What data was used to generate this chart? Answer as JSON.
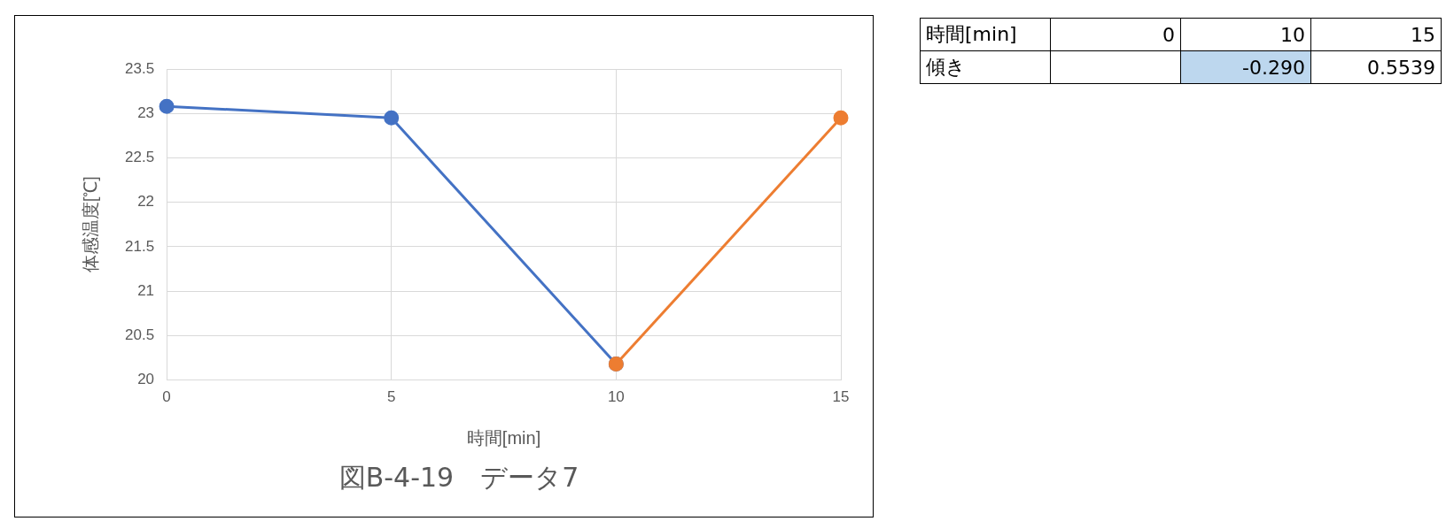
{
  "chart_data": [
    {
      "type": "line",
      "title": "図B-4-19　データ7",
      "xlabel": "時間[min]",
      "ylabel": "体感温度[℃]",
      "series": [
        {
          "color": "#4472c4",
          "x": [
            0,
            5,
            10
          ],
          "values": [
            23.08,
            22.95,
            20.18
          ]
        },
        {
          "color": "#ed7d31",
          "x": [
            10,
            15
          ],
          "values": [
            20.18,
            22.95
          ]
        }
      ],
      "xlim": [
        0,
        15
      ],
      "xticks": [
        0,
        5,
        10,
        15
      ],
      "ylim": [
        20,
        23.5
      ],
      "yticks": [
        20,
        20.5,
        21,
        21.5,
        22,
        22.5,
        23,
        23.5
      ],
      "grid": true,
      "legend": false,
      "marker": "circle",
      "line_style": "solid"
    },
    {
      "type": "other",
      "annotations": [
        "時間[min]",
        "0",
        "10",
        "15",
        "傾き",
        "-0.290",
        "0.5539"
      ]
    }
  ]
}
